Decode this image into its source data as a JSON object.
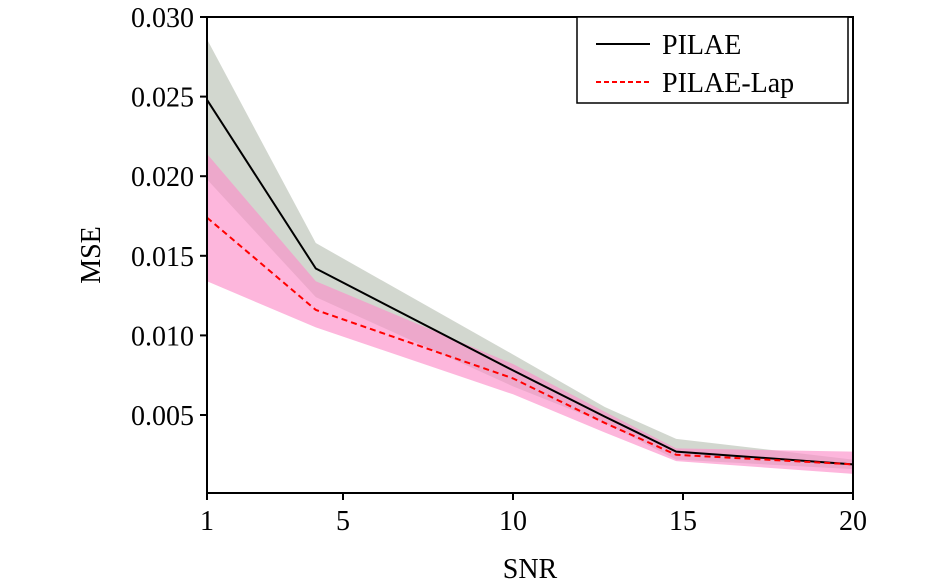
{
  "chart_data": {
    "type": "line",
    "title": "",
    "xlabel": "SNR",
    "ylabel": "MSE",
    "xlim": [
      1,
      20
    ],
    "ylim": [
      0.0001,
      0.03
    ],
    "xticks": [
      1,
      5,
      10,
      15,
      20
    ],
    "xtick_labels": [
      "1",
      "5",
      "10",
      "15",
      "20"
    ],
    "yticks": [
      0.005,
      0.01,
      0.015,
      0.02,
      0.025,
      0.03
    ],
    "ytick_labels": [
      "0.005",
      "0.010",
      "0.015",
      "0.020",
      "0.025",
      "0.030"
    ],
    "grid": false,
    "legend_position": "top-right",
    "x": [
      1,
      4.2,
      10,
      12.7,
      14.8,
      20
    ],
    "series": [
      {
        "name": "PILAE",
        "color": "#000000",
        "dash": "solid",
        "band_color": "#b4bcaf",
        "values": [
          0.0248,
          0.0142,
          0.0078,
          0.0049,
          0.0027,
          0.0019
        ],
        "upper": [
          0.0286,
          0.0158,
          0.0088,
          0.0055,
          0.0035,
          0.0022
        ],
        "lower": [
          0.0198,
          0.0124,
          0.0068,
          0.0045,
          0.0022,
          0.0016
        ]
      },
      {
        "name": "PILAE-Lap",
        "color": "#ff0000",
        "dash": "dashed",
        "band_color": "#fc8fca",
        "values": [
          0.0174,
          0.0116,
          0.0073,
          0.0045,
          0.0025,
          0.0019
        ],
        "upper": [
          0.0214,
          0.0134,
          0.0082,
          0.0052,
          0.0029,
          0.0027
        ],
        "lower": [
          0.0134,
          0.0105,
          0.0063,
          0.0039,
          0.0021,
          0.0013
        ]
      }
    ]
  }
}
